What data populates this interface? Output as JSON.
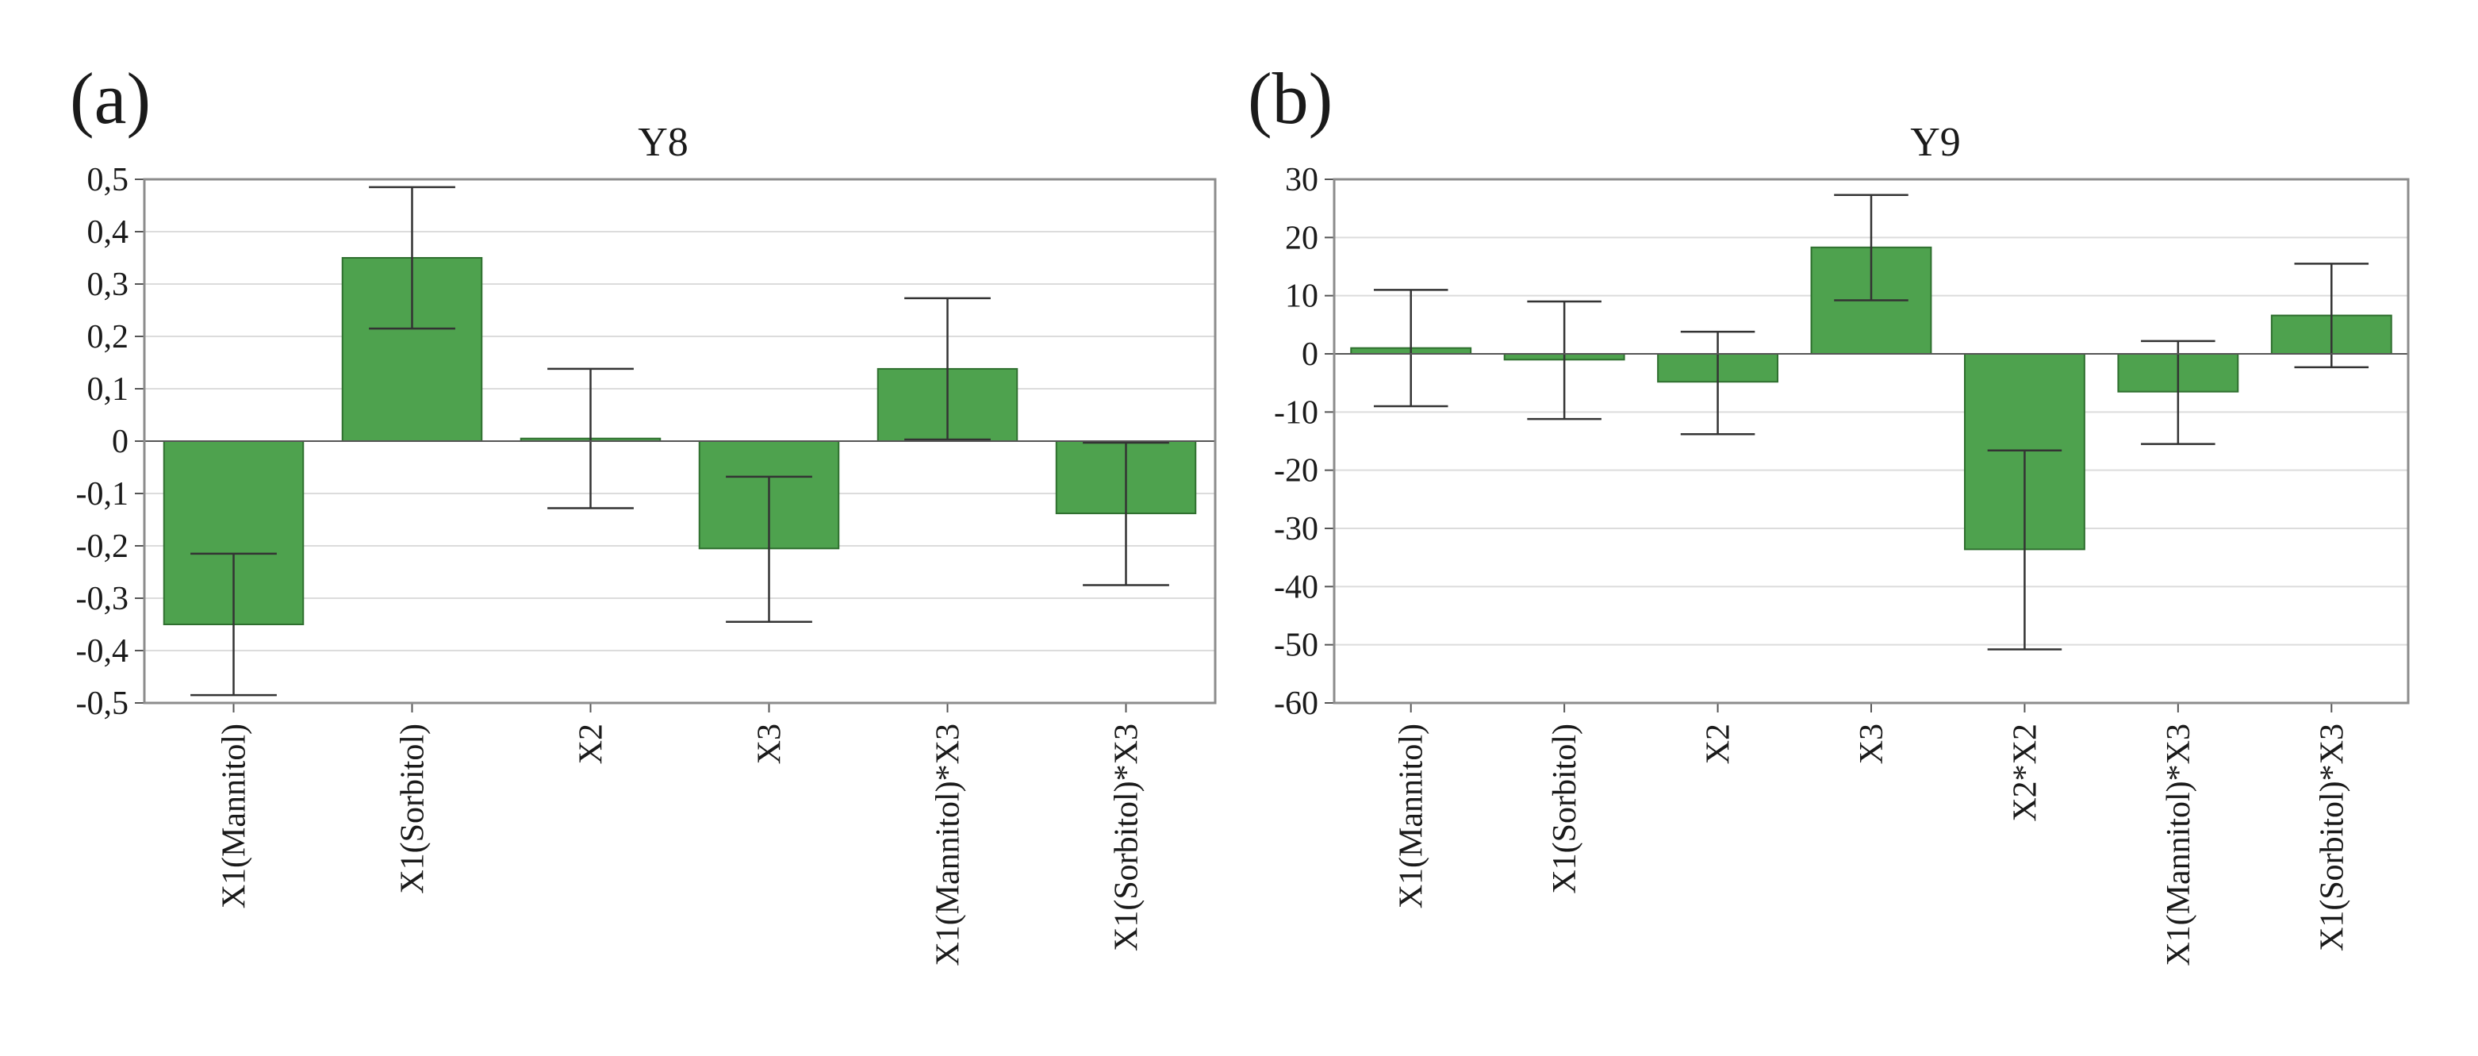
{
  "chart_data": [
    {
      "type": "bar",
      "panel_label": "(a)",
      "title": "Y8",
      "xlabel": "",
      "ylabel": "",
      "ylim": [
        -0.5,
        0.5
      ],
      "yticks": [
        0.5,
        0.4,
        0.3,
        0.2,
        0.1,
        0,
        -0.1,
        -0.2,
        -0.3,
        -0.4,
        -0.5
      ],
      "ytick_labels": [
        "0,5",
        "0,4",
        "0,3",
        "0,2",
        "0,1",
        "0",
        "-0,1",
        "-0,2",
        "-0,3",
        "-0,4",
        "-0,5"
      ],
      "grid": true,
      "categories": [
        "X1(Mannitol)",
        "X1(Sorbitol)",
        "X2",
        "X3",
        "X1(Mannitol)*X3",
        "X1(Sorbitol)*X3"
      ],
      "values": [
        -0.35,
        0.35,
        0.005,
        -0.205,
        0.138,
        -0.138
      ],
      "error_low": [
        -0.485,
        0.215,
        -0.128,
        -0.345,
        0.003,
        -0.275
      ],
      "error_high": [
        -0.215,
        0.485,
        0.138,
        -0.068,
        0.273,
        -0.003
      ],
      "bar_color": "#4ea24e"
    },
    {
      "type": "bar",
      "panel_label": "(b)",
      "title": "Y9",
      "xlabel": "",
      "ylabel": "",
      "ylim": [
        -60,
        30
      ],
      "yticks": [
        30,
        20,
        10,
        0,
        -10,
        -20,
        -30,
        -40,
        -50,
        -60
      ],
      "ytick_labels": [
        "30",
        "20",
        "10",
        "0",
        "-10",
        "-20",
        "-30",
        "-40",
        "-50",
        "-60"
      ],
      "grid": true,
      "categories": [
        "X1(Mannitol)",
        "X1(Sorbitol)",
        "X2",
        "X3",
        "X2*X2",
        "X1(Mannitol)*X3",
        "X1(Sorbitol)*X3"
      ],
      "values": [
        1,
        -1,
        -4.8,
        18.3,
        -33.6,
        -6.5,
        6.6
      ],
      "error_low": [
        -9,
        -11.2,
        -13.8,
        9.2,
        -50.8,
        -15.5,
        -2.3
      ],
      "error_high": [
        11,
        9,
        3.8,
        27.3,
        -16.6,
        2.2,
        15.5
      ],
      "bar_color": "#4ea24e"
    }
  ]
}
